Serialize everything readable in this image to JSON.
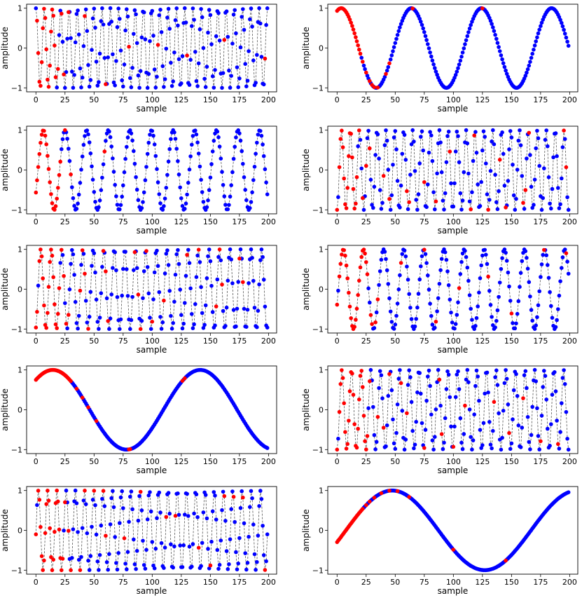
{
  "figure": {
    "colors": {
      "normal": "#0000ff",
      "highlight": "#ff0000",
      "line": "#555555",
      "frame": "#000000"
    }
  },
  "chart_data": [
    {
      "type": "line",
      "xlabel": "sample",
      "ylabel": "amplitude",
      "xlim": [
        -8,
        207
      ],
      "ylim": [
        -1.1,
        1.1
      ],
      "xticks": [
        0,
        25,
        50,
        75,
        100,
        125,
        150,
        175,
        200
      ],
      "yticks": [
        -1,
        0,
        1
      ],
      "x_range": [
        0,
        199
      ],
      "signal": {
        "form": "sine",
        "cycles_over_range": 28,
        "phase": 1.5
      },
      "marker_colors": [
        "blue",
        "red"
      ],
      "highlighted_samples": [
        1,
        2,
        3,
        4,
        5,
        6,
        7,
        8,
        9,
        10,
        11,
        12,
        13,
        14,
        15,
        16,
        17,
        19,
        22,
        24,
        28,
        42,
        60,
        80,
        105,
        130,
        162,
        197
      ]
    },
    {
      "type": "line",
      "xlabel": "sample",
      "ylabel": "amplitude",
      "xlim": [
        -8,
        207
      ],
      "ylim": [
        -1.1,
        1.1
      ],
      "xticks": [
        0,
        25,
        50,
        75,
        100,
        125,
        150,
        175,
        200
      ],
      "yticks": [
        -1,
        0,
        1
      ],
      "x_range": [
        0,
        199
      ],
      "signal": {
        "form": "sine",
        "cycles_over_range": 3.3,
        "phase": 1.2
      },
      "marker_colors": [
        "blue",
        "red"
      ],
      "highlighted_samples": [
        0,
        1,
        2,
        3,
        4,
        5,
        6,
        7,
        8,
        9,
        10,
        11,
        12,
        13,
        14,
        15,
        16,
        17,
        18,
        19,
        20,
        22,
        25,
        28,
        30,
        32,
        35,
        42,
        45,
        65,
        125
      ]
    },
    {
      "type": "line",
      "xlabel": "sample",
      "ylabel": "amplitude",
      "xlim": [
        -8,
        207
      ],
      "ylim": [
        -1.1,
        1.1
      ],
      "xticks": [
        0,
        25,
        50,
        75,
        100,
        125,
        150,
        175,
        200
      ],
      "yticks": [
        -1,
        0,
        1
      ],
      "x_range": [
        0,
        199
      ],
      "signal": {
        "form": "sine",
        "cycles_over_range": 10.7,
        "phase": -0.6
      },
      "marker_colors": [
        "blue",
        "red"
      ],
      "highlighted_samples": [
        0,
        1,
        2,
        3,
        4,
        5,
        6,
        7,
        8,
        9,
        10,
        11,
        12,
        13,
        14,
        15,
        16,
        17,
        18,
        19,
        20,
        21,
        25,
        30,
        59
      ]
    },
    {
      "type": "line",
      "xlabel": "sample",
      "ylabel": "amplitude",
      "xlim": [
        -8,
        207
      ],
      "ylim": [
        -1.1,
        1.1
      ],
      "xticks": [
        0,
        25,
        50,
        75,
        100,
        125,
        150,
        175,
        200
      ],
      "yticks": [
        -1,
        0,
        1
      ],
      "x_range": [
        0,
        199
      ],
      "signal": {
        "form": "sine",
        "cycles_over_range": 26,
        "phase": -1.57
      },
      "marker_colors": [
        "blue",
        "red"
      ],
      "highlighted_samples": [
        0,
        2,
        3,
        4,
        5,
        6,
        7,
        8,
        9,
        10,
        11,
        12,
        13,
        14,
        15,
        16,
        17,
        19,
        22,
        25,
        28,
        40,
        45,
        60,
        62,
        75,
        85,
        97,
        115,
        118,
        130,
        140,
        145,
        160,
        162,
        165,
        195,
        197
      ]
    },
    {
      "type": "line",
      "xlabel": "sample",
      "ylabel": "amplitude",
      "xlim": [
        -8,
        207
      ],
      "ylim": [
        -1.1,
        1.1
      ],
      "xticks": [
        0,
        25,
        50,
        75,
        100,
        125,
        150,
        175,
        200
      ],
      "yticks": [
        -1,
        0,
        1
      ],
      "x_range": [
        0,
        199
      ],
      "signal": {
        "form": "sine",
        "cycles_over_range": 22,
        "phase": -1.3
      },
      "marker_colors": [
        "blue",
        "red"
      ],
      "highlighted_samples": [
        0,
        1,
        3,
        4,
        5,
        6,
        7,
        8,
        9,
        10,
        11,
        12,
        13,
        14,
        15,
        16,
        17,
        18,
        19,
        20,
        22,
        24,
        26,
        28,
        38,
        40,
        42,
        45,
        58,
        60,
        62,
        85,
        88,
        90,
        95,
        100,
        110,
        130,
        140,
        155,
        158,
        160,
        175,
        178
      ]
    },
    {
      "type": "line",
      "xlabel": "sample",
      "ylabel": "amplitude",
      "xlim": [
        -8,
        207
      ],
      "ylim": [
        -1.1,
        1.1
      ],
      "xticks": [
        0,
        25,
        50,
        75,
        100,
        125,
        150,
        175,
        200
      ],
      "yticks": [
        -1,
        0,
        1
      ],
      "x_range": [
        0,
        199
      ],
      "signal": {
        "form": "sine",
        "cycles_over_range": 11.5,
        "phase": -0.4
      },
      "marker_colors": [
        "blue",
        "red"
      ],
      "highlighted_samples": [
        0,
        2,
        3,
        4,
        5,
        6,
        7,
        8,
        9,
        10,
        11,
        12,
        13,
        14,
        15,
        16,
        17,
        18,
        19,
        20,
        21,
        22,
        23,
        24,
        25,
        26,
        29,
        30,
        33,
        35,
        55,
        75,
        85,
        105,
        130,
        150,
        178,
        197
      ]
    },
    {
      "type": "line",
      "xlabel": "sample",
      "ylabel": "amplitude",
      "xlim": [
        -8,
        207
      ],
      "ylim": [
        -1.1,
        1.1
      ],
      "xticks": [
        0,
        25,
        50,
        75,
        100,
        125,
        150,
        175,
        200
      ],
      "yticks": [
        -1,
        0,
        1
      ],
      "x_range": [
        0,
        199
      ],
      "signal": {
        "form": "sine",
        "cycles_over_range": 1.57,
        "phase": 0.85
      },
      "marker_colors": [
        "blue",
        "red"
      ],
      "highlighted_samples": [
        0,
        1,
        2,
        3,
        4,
        5,
        6,
        7,
        8,
        9,
        10,
        11,
        12,
        13,
        14,
        15,
        16,
        17,
        18,
        19,
        20,
        21,
        22,
        23,
        24,
        25,
        26,
        27,
        28,
        29,
        30,
        35,
        40,
        45,
        52,
        80,
        81,
        126,
        128
      ]
    },
    {
      "type": "line",
      "xlabel": "sample",
      "ylabel": "amplitude",
      "xlim": [
        -8,
        207
      ],
      "ylim": [
        -1.1,
        1.1
      ],
      "xticks": [
        0,
        25,
        50,
        75,
        100,
        125,
        150,
        175,
        200
      ],
      "yticks": [
        -1,
        0,
        1
      ],
      "x_range": [
        0,
        199
      ],
      "signal": {
        "form": "sine",
        "cycles_over_range": 24,
        "phase": -1.57
      },
      "marker_colors": [
        "blue",
        "red"
      ],
      "highlighted_samples": [
        0,
        2,
        3,
        4,
        5,
        6,
        7,
        8,
        9,
        10,
        11,
        12,
        13,
        14,
        15,
        16,
        17,
        18,
        19,
        20,
        21,
        22,
        23,
        24,
        25,
        26,
        28,
        35,
        40,
        45,
        55,
        60,
        75,
        88,
        90,
        100,
        110,
        135,
        148,
        160,
        175,
        190
      ]
    },
    {
      "type": "line",
      "xlabel": "sample",
      "ylabel": "amplitude",
      "xlim": [
        -8,
        207
      ],
      "ylim": [
        -1.1,
        1.1
      ],
      "xticks": [
        0,
        25,
        50,
        75,
        100,
        125,
        150,
        175,
        200
      ],
      "yticks": [
        -1,
        0,
        1
      ],
      "x_range": [
        0,
        199
      ],
      "signal": {
        "form": "sine",
        "cycles_over_range": 25,
        "phase": -0.1
      },
      "marker_colors": [
        "blue",
        "red"
      ],
      "highlighted_samples": [
        0,
        2,
        3,
        4,
        5,
        6,
        7,
        8,
        9,
        10,
        11,
        12,
        13,
        14,
        15,
        16,
        17,
        18,
        19,
        20,
        21,
        22,
        23,
        25,
        28,
        30,
        38,
        42,
        50,
        58,
        60,
        76,
        90,
        112,
        120,
        140,
        150,
        162,
        170,
        178,
        197
      ]
    },
    {
      "type": "line",
      "xlabel": "sample",
      "ylabel": "amplitude",
      "xlim": [
        -8,
        207
      ],
      "ylim": [
        -1.1,
        1.1
      ],
      "xticks": [
        0,
        25,
        50,
        75,
        100,
        125,
        150,
        175,
        200
      ],
      "yticks": [
        -1,
        0,
        1
      ],
      "x_range": [
        0,
        199
      ],
      "signal": {
        "form": "sine",
        "cycles_over_range": 1.25,
        "phase": -0.3
      },
      "marker_colors": [
        "blue",
        "red"
      ],
      "highlighted_samples": [
        0,
        1,
        2,
        3,
        4,
        5,
        6,
        7,
        8,
        9,
        10,
        11,
        12,
        13,
        14,
        15,
        16,
        17,
        18,
        19,
        20,
        21,
        22,
        25,
        28,
        32,
        38,
        45,
        52,
        62,
        100,
        145
      ]
    }
  ]
}
